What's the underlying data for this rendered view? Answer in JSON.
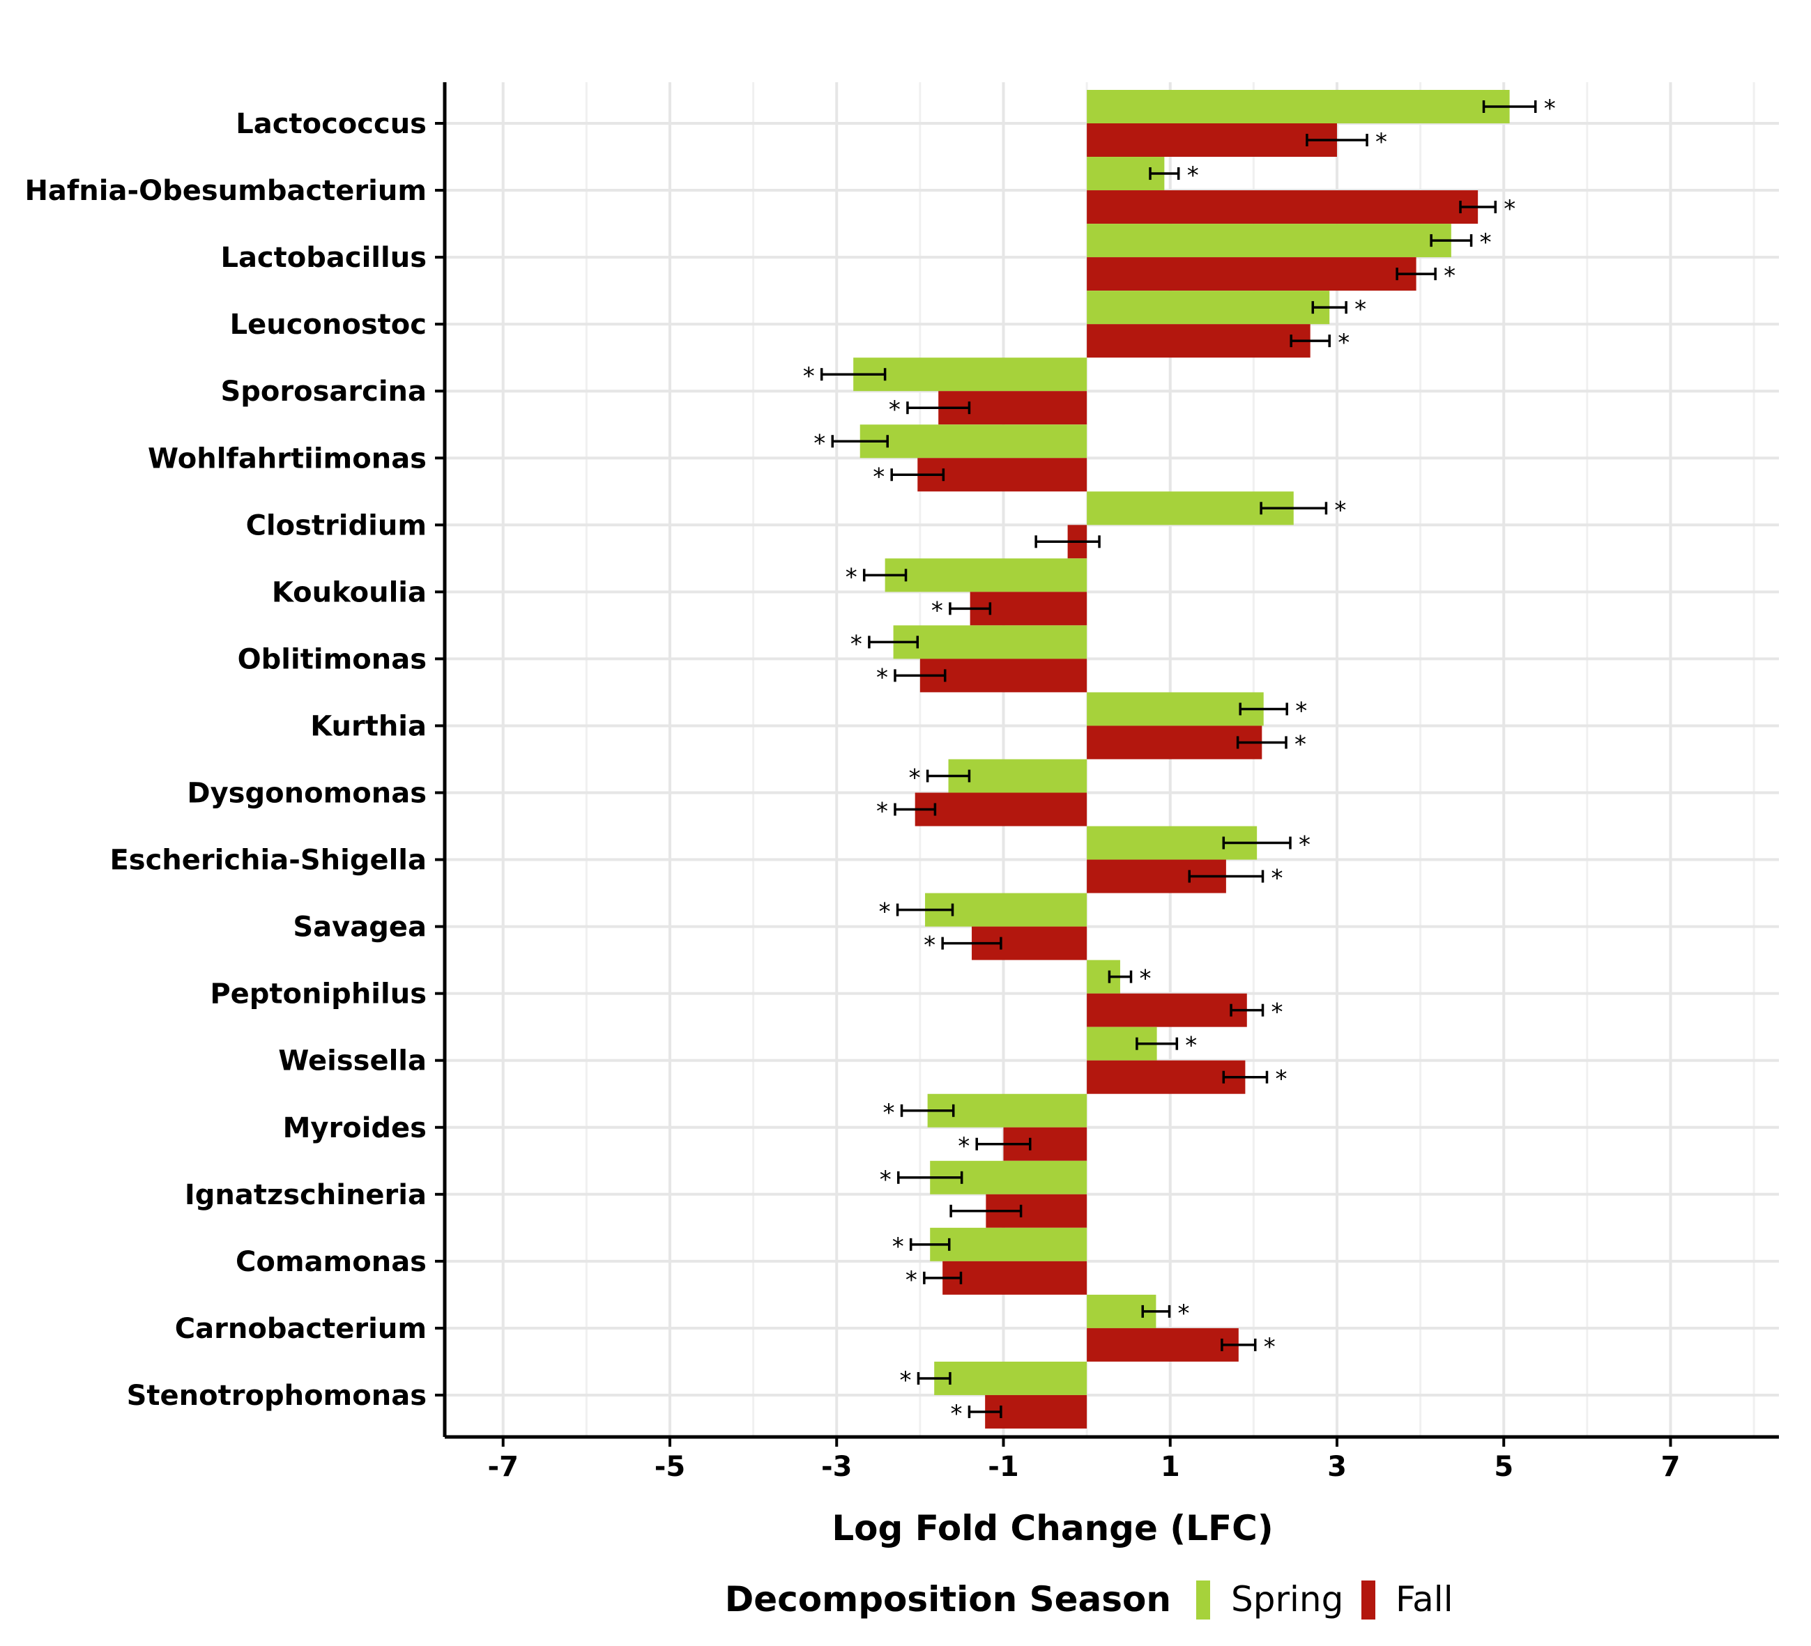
{
  "chart_data": {
    "type": "bar",
    "orientation": "horizontal",
    "xlabel": "Log Fold Change (LFC)",
    "xlim": [
      -7.7,
      8.3
    ],
    "xticks": [
      -7,
      -5,
      -3,
      -1,
      1,
      3,
      5,
      7
    ],
    "grid": true,
    "legend": {
      "title": "Decomposition Season",
      "placement": "bottom"
    },
    "categories": [
      "Lactococcus",
      "Hafnia-Obesumbacterium",
      "Lactobacillus",
      "Leuconostoc",
      "Sporosarcina",
      "Wohlfahrtiimonas",
      "Clostridium",
      "Koukoulia",
      "Oblitimonas",
      "Kurthia",
      "Dysgonomonas",
      "Escherichia-Shigella",
      "Savagea",
      "Peptoniphilus",
      "Weissella",
      "Myroides",
      "Ignatzschineria",
      "Comamonas",
      "Carnobacterium",
      "Stenotrophomonas"
    ],
    "series": [
      {
        "name": "Spring",
        "color": "#a6d23b",
        "values": [
          5.07,
          0.93,
          4.37,
          2.91,
          -2.8,
          -2.72,
          2.48,
          -2.42,
          -2.32,
          2.12,
          -1.66,
          2.04,
          -1.94,
          0.4,
          0.84,
          -1.91,
          -1.88,
          -1.88,
          0.83,
          -1.83
        ],
        "errors": [
          0.31,
          0.17,
          0.24,
          0.2,
          0.38,
          0.33,
          0.39,
          0.25,
          0.29,
          0.28,
          0.25,
          0.4,
          0.33,
          0.13,
          0.24,
          0.31,
          0.38,
          0.23,
          0.16,
          0.19
        ],
        "significant": [
          true,
          true,
          true,
          true,
          true,
          true,
          true,
          true,
          true,
          true,
          true,
          true,
          true,
          true,
          true,
          true,
          true,
          true,
          true,
          true
        ]
      },
      {
        "name": "Fall",
        "color": "#b3170e",
        "values": [
          3.0,
          4.69,
          3.95,
          2.68,
          -1.78,
          -2.03,
          -0.23,
          -1.4,
          -2.0,
          2.1,
          -2.06,
          1.67,
          -1.38,
          1.92,
          1.9,
          -1.0,
          -1.21,
          -1.73,
          1.82,
          -1.22
        ],
        "errors": [
          0.36,
          0.21,
          0.23,
          0.23,
          0.37,
          0.31,
          0.38,
          0.24,
          0.3,
          0.29,
          0.24,
          0.44,
          0.35,
          0.19,
          0.26,
          0.32,
          0.42,
          0.22,
          0.2,
          0.19
        ],
        "significant": [
          true,
          true,
          true,
          true,
          true,
          true,
          false,
          true,
          true,
          true,
          true,
          true,
          true,
          true,
          true,
          true,
          false,
          true,
          true,
          true
        ]
      }
    ],
    "significance_marker": "*"
  }
}
